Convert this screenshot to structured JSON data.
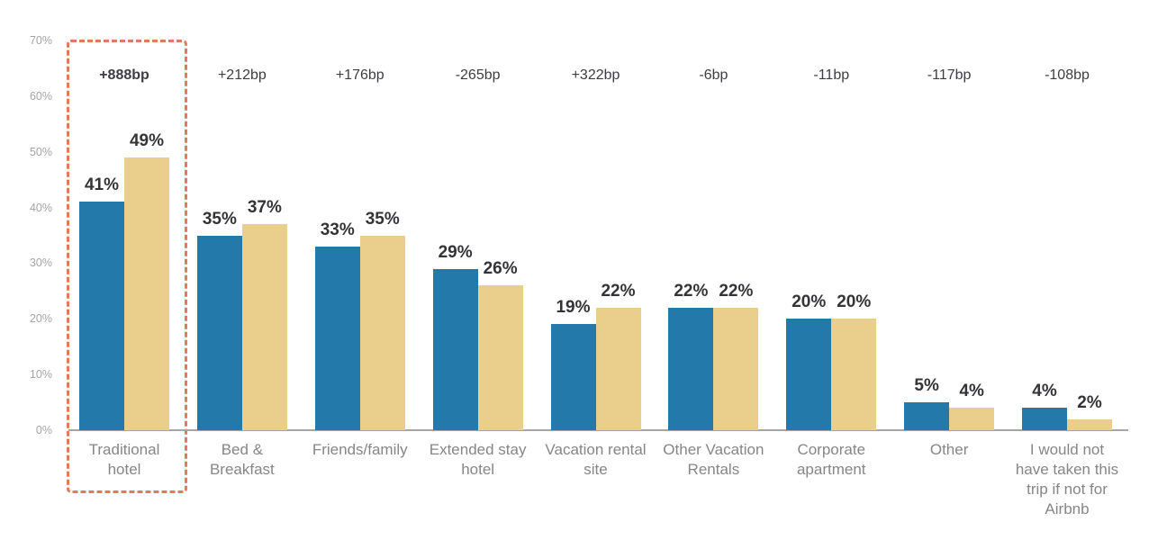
{
  "chart_data": {
    "type": "bar",
    "title": "",
    "xlabel": "",
    "ylabel": "",
    "ylim": [
      0,
      70
    ],
    "yticks": [
      "0%",
      "10%",
      "20%",
      "30%",
      "40%",
      "50%",
      "60%",
      "70%"
    ],
    "grid": false,
    "legend": "none",
    "categories": [
      "Traditional hotel",
      "Bed & Breakfast",
      "Friends/family",
      "Extended stay hotel",
      "Vacation rental site",
      "Other Vacation Rentals",
      "Corporate apartment",
      "Other",
      "I would not have taken this trip if not for Airbnb"
    ],
    "category_label_lines": [
      [
        "Traditional",
        "hotel"
      ],
      [
        "Bed &",
        "Breakfast"
      ],
      [
        "Friends/family"
      ],
      [
        "Extended stay",
        "hotel"
      ],
      [
        "Vacation rental",
        "site"
      ],
      [
        "Other Vacation",
        "Rentals"
      ],
      [
        "Corporate",
        "apartment"
      ],
      [
        "Other"
      ],
      [
        "I would not",
        "have taken this",
        "trip if not for",
        "Airbnb"
      ]
    ],
    "series": [
      {
        "name": "blue-series",
        "color": "#2379a9",
        "values": [
          41,
          35,
          33,
          29,
          19,
          22,
          20,
          5,
          4
        ],
        "labels": [
          "41%",
          "35%",
          "33%",
          "29%",
          "19%",
          "22%",
          "20%",
          "5%",
          "4%"
        ]
      },
      {
        "name": "gold-series",
        "color": "#e9cf8b",
        "values": [
          49,
          37,
          35,
          26,
          22,
          22,
          20,
          4,
          2
        ],
        "labels": [
          "49%",
          "37%",
          "35%",
          "26%",
          "22%",
          "22%",
          "20%",
          "4%",
          "2%"
        ]
      }
    ],
    "annotations": [
      {
        "text": "+888bp",
        "bold": true
      },
      {
        "text": "+212bp",
        "bold": false
      },
      {
        "text": "+176bp",
        "bold": false
      },
      {
        "text": "-265bp",
        "bold": false
      },
      {
        "text": "+322bp",
        "bold": false
      },
      {
        "text": "-6bp",
        "bold": false
      },
      {
        "text": "-11bp",
        "bold": false
      },
      {
        "text": "-117bp",
        "bold": false
      },
      {
        "text": "-108bp",
        "bold": false
      }
    ],
    "highlight": {
      "category_index": 0,
      "border_color": "#e0795e",
      "style": "dashed"
    }
  },
  "colors": {
    "background": "#ffffff",
    "axis_line": "#a5a5a5",
    "tick_label": "#a4a4a4",
    "category_label": "#868686",
    "value_label": "#333338",
    "annotation_label": "#3d3d44"
  }
}
